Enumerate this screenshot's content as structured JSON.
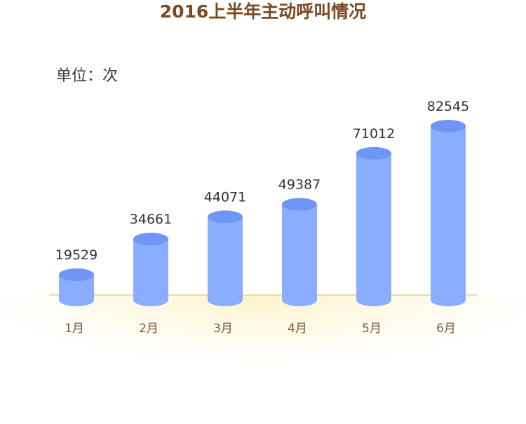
{
  "chart_data": {
    "type": "bar",
    "title": "2016上半年主动呼叫情况",
    "unit_label": "单位：次",
    "categories": [
      "1月",
      "2月",
      "3月",
      "4月",
      "5月",
      "6月"
    ],
    "series": [
      {
        "values": [
          19529,
          34661,
          44071,
          49387,
          71012,
          82545
        ]
      }
    ],
    "ylim": [
      0,
      82545
    ],
    "grid": false,
    "legend": "none",
    "colors": {
      "bar_body": "#8aadff",
      "bar_top": "#6f95f6",
      "baseline": "#e7cb63",
      "glow": "#fff0bf",
      "title": "#7a4a22",
      "labels": "#333333",
      "ticks": "#7a5a3a"
    }
  }
}
